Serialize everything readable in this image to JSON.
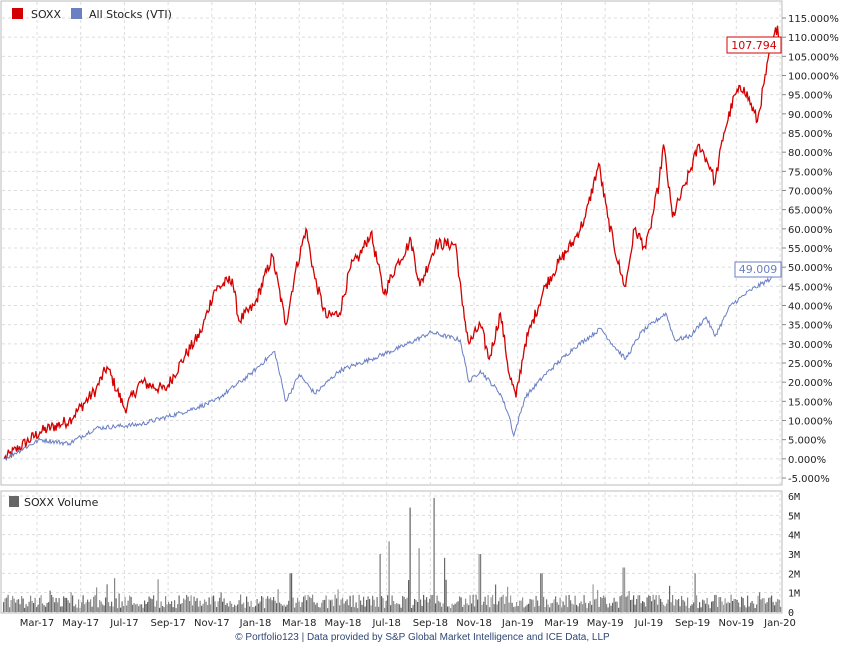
{
  "chart_data": [
    {
      "type": "line",
      "title": "",
      "xlabel": "",
      "ylabel": "",
      "x_unit": "months since start (Feb-17)",
      "xlim": [
        0,
        34.9
      ],
      "ylim": [
        -5,
        115
      ],
      "y_ticks": [
        "115.000%",
        "110.000%",
        "105.000%",
        "100.000%",
        "95.000%",
        "90.000%",
        "85.000%",
        "80.000%",
        "75.000%",
        "70.000%",
        "65.000%",
        "60.000%",
        "55.000%",
        "50.000%",
        "45.000%",
        "40.000%",
        "35.000%",
        "30.000%",
        "25.000%",
        "20.000%",
        "15.000%",
        "10.000%",
        "5.000%",
        "0.000%",
        "-5.000%"
      ],
      "x_ticks": [
        "Mar-17",
        "May-17",
        "Jul-17",
        "Sep-17",
        "Nov-17",
        "Jan-18",
        "Mar-18",
        "May-18",
        "Jul-18",
        "Sep-18",
        "Nov-18",
        "Jan-19",
        "Mar-19",
        "May-19",
        "Jul-19",
        "Sep-19",
        "Nov-19",
        "Jan-20"
      ],
      "grid": true,
      "legend_position": "top-left",
      "series": [
        {
          "name": "SOXX",
          "color": "#d40000",
          "last_value": "107.794",
          "t": [
            0.1,
            1.7,
            3.0,
            4.2,
            4.7,
            5.5,
            6.2,
            7.3,
            8.2,
            8.9,
            9.5,
            10.3,
            10.6,
            11.3,
            12.1,
            12.7,
            13.1,
            13.6,
            14.0,
            14.5,
            15.1,
            15.6,
            16.0,
            16.5,
            17.1,
            17.6,
            18.3,
            18.7,
            19.4,
            20.3,
            20.6,
            20.9,
            21.4,
            21.8,
            22.3,
            22.7,
            23.0,
            23.4,
            24.3,
            25.0,
            25.6,
            26.1,
            26.7,
            27.1,
            27.7,
            27.9,
            28.3,
            28.8,
            29.0,
            29.4,
            29.6,
            30.0,
            30.6,
            31.2,
            31.7,
            31.9,
            32.3,
            32.8,
            33.2,
            33.8,
            34.1,
            34.4,
            34.7,
            34.85
          ],
          "v": [
            0,
            7,
            10,
            18,
            24,
            13,
            20,
            18,
            27,
            33,
            44,
            47,
            36,
            40,
            53,
            35,
            48,
            60,
            47,
            37,
            38,
            50,
            53,
            59,
            43,
            50,
            57,
            45,
            56,
            56,
            40,
            30,
            35,
            26,
            38,
            22,
            16,
            30,
            45,
            52,
            57,
            63,
            77,
            63,
            48,
            45,
            60,
            55,
            60,
            72,
            82,
            63,
            72,
            82,
            76,
            72,
            85,
            95,
            97,
            88,
            98,
            107,
            113,
            107.794
          ]
        },
        {
          "name": "All Stocks (VTI)",
          "color": "#6a7fc4",
          "last_value": "49.009",
          "t": [
            0.1,
            1.7,
            3.0,
            4.2,
            6.2,
            8.0,
            9.5,
            11.1,
            12.2,
            12.7,
            13.3,
            14.0,
            15.1,
            16.5,
            17.8,
            19.2,
            20.5,
            20.9,
            21.4,
            22.3,
            22.7,
            22.9,
            23.4,
            24.3,
            25.6,
            26.8,
            27.3,
            27.9,
            28.6,
            29.7,
            30.1,
            30.8,
            31.5,
            31.9,
            32.6,
            33.5,
            34.4,
            34.85
          ],
          "v": [
            0,
            5,
            4,
            8,
            9,
            12,
            15,
            22,
            28,
            15,
            22,
            17,
            23,
            26,
            29,
            33,
            31,
            20,
            23,
            17,
            11,
            6,
            16,
            22,
            29,
            34,
            30,
            26,
            33,
            38,
            31,
            32,
            37,
            32,
            40,
            44,
            47,
            49.009
          ]
        }
      ]
    },
    {
      "type": "bar",
      "title": "SOXX Volume",
      "ylim": [
        0,
        6
      ],
      "y_unit": "millions of shares",
      "y_ticks": [
        "6M",
        "5M",
        "4M",
        "3M",
        "2M",
        "1M",
        "0"
      ],
      "typical_range_M": [
        0.2,
        0.9
      ],
      "spikes": {
        "t": [
          5.0,
          12.9,
          16.9,
          17.3,
          18.25,
          18.65,
          19.3,
          19.8,
          21.35,
          24.1,
          27.8,
          31.0
        ],
        "v": [
          1.75,
          2.0,
          3.0,
          3.65,
          5.4,
          3.3,
          5.9,
          2.8,
          3.0,
          2.0,
          2.3,
          2.0
        ]
      }
    }
  ],
  "footer": "© Portfolio123 | Data provided by S&P Global Market Intelligence and ICE Data, LLP"
}
